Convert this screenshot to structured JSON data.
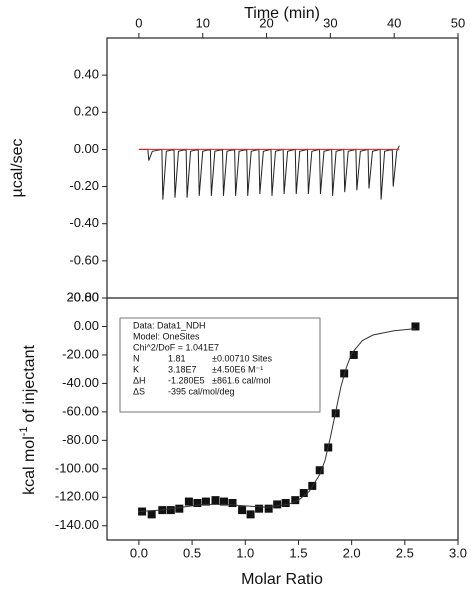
{
  "chart_data": [
    {
      "type": "line",
      "xlabel": "Time (min)",
      "ylabel": "µcal/sec",
      "xlim": [
        -5,
        50
      ],
      "xticks": [
        0,
        10,
        20,
        30,
        40,
        50
      ],
      "ylim": [
        -0.8,
        0.6
      ],
      "yticks": [
        {
          "value": 0.4,
          "label": "0.40"
        },
        {
          "value": 0.2,
          "label": "0.20"
        },
        {
          "value": 0,
          "label": "0.00"
        },
        {
          "value": -0.2,
          "label": "-0.20"
        },
        {
          "value": -0.4,
          "label": "-0.40"
        },
        {
          "value": -0.6,
          "label": "-0.60"
        },
        {
          "value": -0.8,
          "label": "-0.80"
        }
      ],
      "series": [
        {
          "type": "line",
          "color": "#222222",
          "x": [
            0,
            1.4,
            1.55,
            2.1,
            3.6,
            3.75,
            4.3,
            5.5,
            5.65,
            6.2,
            7.4,
            7.55,
            8.1,
            9.3,
            9.45,
            10.0,
            11.2,
            11.35,
            11.9,
            13.1,
            13.25,
            13.8,
            15.0,
            15.15,
            15.7,
            16.9,
            17.05,
            17.6,
            18.8,
            18.95,
            19.5,
            20.7,
            20.85,
            21.4,
            22.6,
            22.75,
            23.3,
            24.5,
            24.65,
            25.2,
            26.4,
            26.55,
            27.1,
            28.3,
            28.45,
            29.0,
            30.2,
            30.35,
            30.9,
            32.1,
            32.25,
            32.8,
            34.0,
            34.15,
            34.7,
            35.9,
            36.05,
            36.6,
            37.8,
            37.95,
            38.5,
            39.7,
            39.85,
            40.4,
            40.8
          ],
          "values": [
            0,
            0,
            -0.06,
            -0.01,
            0,
            -0.27,
            -0.01,
            0,
            -0.26,
            -0.01,
            0,
            -0.26,
            -0.01,
            0,
            -0.25,
            -0.01,
            0,
            -0.25,
            -0.01,
            0,
            -0.25,
            -0.01,
            0,
            -0.25,
            -0.01,
            0,
            -0.25,
            -0.01,
            0,
            -0.24,
            -0.01,
            0,
            -0.25,
            -0.01,
            0,
            -0.24,
            -0.01,
            0,
            -0.24,
            -0.01,
            0,
            -0.24,
            -0.01,
            0,
            -0.24,
            -0.01,
            0,
            -0.25,
            -0.01,
            0,
            -0.23,
            -0.01,
            0,
            -0.22,
            -0.01,
            0,
            -0.21,
            -0.01,
            0,
            -0.27,
            -0.01,
            0,
            -0.2,
            -0.01,
            0.02
          ]
        },
        {
          "type": "line",
          "color": "#e02020",
          "x": [
            0,
            40.8
          ],
          "values": [
            0,
            0
          ]
        }
      ]
    },
    {
      "type": "scatter",
      "xlabel": "Molar Ratio",
      "ylabel": "kcal mol",
      "ylabel_superscript": "-1",
      "ylabel_suffix": "of injectant",
      "xlim": [
        -0.3,
        3.0
      ],
      "xticks": [
        {
          "value": 0,
          "label": "0.0"
        },
        0.5,
        {
          "value": 1,
          "label": "1.0"
        },
        1.5,
        {
          "value": 2,
          "label": "2.0"
        },
        2.5,
        {
          "value": 3,
          "label": "3.0"
        }
      ],
      "ylim": [
        -150,
        20
      ],
      "yticks": [
        {
          "value": 20,
          "label": "20.00"
        },
        {
          "value": 0,
          "label": "0.00"
        },
        {
          "value": -20,
          "label": "-20.00"
        },
        {
          "value": -40,
          "label": "-40.00"
        },
        {
          "value": -60,
          "label": "-60.00"
        },
        {
          "value": -80,
          "label": "-80.00"
        },
        {
          "value": -100,
          "label": "-100.00"
        },
        {
          "value": -120,
          "label": "-120.00"
        },
        {
          "value": -140,
          "label": "-140.00"
        }
      ],
      "series": [
        {
          "type": "scatter",
          "color": "#111111",
          "x": [
            0.03,
            0.12,
            0.22,
            0.3,
            0.38,
            0.47,
            0.55,
            0.63,
            0.72,
            0.8,
            0.88,
            0.97,
            1.05,
            1.13,
            1.22,
            1.3,
            1.38,
            1.47,
            1.55,
            1.63,
            1.7,
            1.78,
            1.85,
            1.93,
            2.02,
            2.6
          ],
          "values": [
            -130,
            -132,
            -129,
            -129,
            -128,
            -123,
            -124,
            -123,
            -122,
            -123,
            -124,
            -129,
            -132,
            -128,
            -128,
            -125,
            -124,
            -122,
            -117,
            -112,
            -101,
            -85,
            -61,
            -33,
            -20,
            0
          ]
        },
        {
          "type": "line",
          "color": "#333333",
          "x": [
            0,
            0.2,
            0.4,
            0.6,
            0.8,
            1.0,
            1.2,
            1.4,
            1.5,
            1.6,
            1.7,
            1.75,
            1.8,
            1.85,
            1.9,
            1.95,
            2.0,
            2.1,
            2.2,
            2.4,
            2.6
          ],
          "values": [
            -130,
            -129,
            -127,
            -125,
            -125,
            -126,
            -127,
            -125,
            -122,
            -116,
            -104,
            -94,
            -78,
            -60,
            -42,
            -29,
            -19,
            -10,
            -6,
            -3,
            -1.5
          ]
        }
      ],
      "annotation": {
        "lines": [
          "Data: Data1_NDH",
          "Model: OneSites",
          "Chi^2/DoF = 1.041E7"
        ],
        "rows": [
          [
            "N",
            "1.81",
            "±0.00710 Sites"
          ],
          [
            "K",
            "3.18E7",
            "±4.50E6 M⁻¹"
          ],
          [
            "ΔH",
            "-1.280E5",
            "±861.6 cal/mol"
          ],
          [
            "ΔS",
            "-395 cal/mol/deg"
          ]
        ]
      }
    }
  ]
}
